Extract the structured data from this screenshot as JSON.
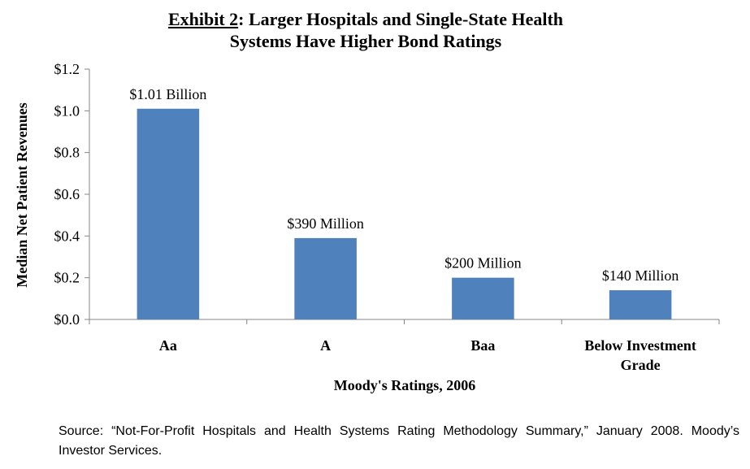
{
  "title": {
    "exhibit": "Exhibit 2",
    "colon": ":",
    "line1_rest": " Larger Hospitals and Single-State Health",
    "line2": "Systems Have Higher Bond Ratings"
  },
  "chart_data": {
    "type": "bar",
    "categories": [
      [
        "Aa"
      ],
      [
        "A"
      ],
      [
        "Baa"
      ],
      [
        "Below Investment",
        "Grade"
      ]
    ],
    "values": [
      1.01,
      0.39,
      0.2,
      0.14
    ],
    "data_labels": [
      "$1.01 Billion",
      "$390 Million",
      "$200 Million",
      "$140 Million"
    ],
    "xlabel": "Moody's Ratings, 2006",
    "ylabel": "Median Net Patient Revenues",
    "ylim": [
      0,
      1.2
    ],
    "yticks": [
      0,
      0.2,
      0.4,
      0.6,
      0.8,
      1.0,
      1.2
    ],
    "ytick_labels": [
      "$0.0",
      "$0.2",
      "$0.4",
      "$0.6",
      "$0.8",
      "$1.0",
      "$1.2"
    ],
    "bar_color": "#4f81bd",
    "grid": false,
    "legend": "none"
  },
  "source": "Source: “Not-For-Profit Hospitals and Health Systems Rating Methodology Summary,” January 2008. Moody’s Investor Services."
}
